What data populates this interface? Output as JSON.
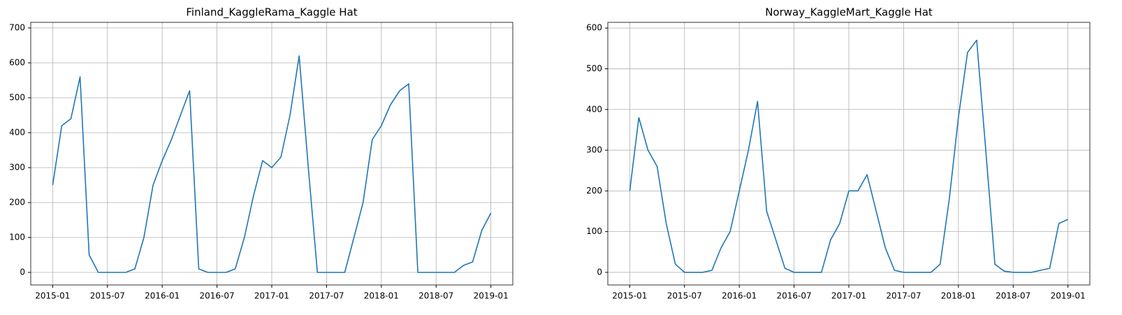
{
  "chart_data": [
    {
      "type": "line",
      "title": "Finland_KaggleRama_Kaggle Hat",
      "grid": true,
      "x": [
        "2015-01",
        "2015-02",
        "2015-03",
        "2015-04",
        "2015-05",
        "2015-06",
        "2015-07",
        "2015-08",
        "2015-09",
        "2015-10",
        "2015-11",
        "2015-12",
        "2016-01",
        "2016-02",
        "2016-03",
        "2016-04",
        "2016-05",
        "2016-06",
        "2016-07",
        "2016-08",
        "2016-09",
        "2016-10",
        "2016-11",
        "2016-12",
        "2017-01",
        "2017-02",
        "2017-03",
        "2017-04",
        "2017-05",
        "2017-06",
        "2017-07",
        "2017-08",
        "2017-09",
        "2017-10",
        "2017-11",
        "2017-12",
        "2018-01",
        "2018-02",
        "2018-03",
        "2018-04",
        "2018-05",
        "2018-06",
        "2018-07",
        "2018-08",
        "2018-09",
        "2018-10",
        "2018-11",
        "2018-12",
        "2019-01"
      ],
      "series": [
        {
          "color": "#1f77b4",
          "values": [
            250,
            420,
            440,
            560,
            50,
            0,
            0,
            0,
            0,
            10,
            100,
            250,
            320,
            380,
            450,
            520,
            10,
            0,
            0,
            0,
            10,
            100,
            220,
            320,
            300,
            330,
            450,
            620,
            300,
            0,
            0,
            0,
            0,
            100,
            200,
            380,
            420,
            480,
            520,
            540,
            0,
            0,
            0,
            0,
            0,
            20,
            30,
            120,
            170
          ]
        }
      ],
      "ylim": [
        -36,
        716
      ],
      "yticks": [
        0,
        100,
        200,
        300,
        400,
        500,
        600,
        700
      ],
      "xticks": [
        "2015-01",
        "2015-07",
        "2016-01",
        "2016-07",
        "2017-01",
        "2017-07",
        "2018-01",
        "2018-07",
        "2019-01"
      ]
    },
    {
      "type": "line",
      "title": "Norway_KaggleMart_Kaggle Hat",
      "grid": true,
      "x": [
        "2015-01",
        "2015-02",
        "2015-03",
        "2015-04",
        "2015-05",
        "2015-06",
        "2015-07",
        "2015-08",
        "2015-09",
        "2015-10",
        "2015-11",
        "2015-12",
        "2016-01",
        "2016-02",
        "2016-03",
        "2016-04",
        "2016-05",
        "2016-06",
        "2016-07",
        "2016-08",
        "2016-09",
        "2016-10",
        "2016-11",
        "2016-12",
        "2017-01",
        "2017-02",
        "2017-03",
        "2017-04",
        "2017-05",
        "2017-06",
        "2017-07",
        "2017-08",
        "2017-09",
        "2017-10",
        "2017-11",
        "2017-12",
        "2018-01",
        "2018-02",
        "2018-03",
        "2018-04",
        "2018-05",
        "2018-06",
        "2018-07",
        "2018-08",
        "2018-09",
        "2018-10",
        "2018-11",
        "2018-12",
        "2019-01"
      ],
      "series": [
        {
          "color": "#1f77b4",
          "values": [
            200,
            380,
            300,
            260,
            120,
            20,
            0,
            0,
            0,
            5,
            60,
            100,
            200,
            300,
            420,
            150,
            80,
            10,
            0,
            0,
            0,
            0,
            80,
            120,
            200,
            200,
            240,
            150,
            60,
            5,
            0,
            0,
            0,
            0,
            20,
            180,
            380,
            540,
            570,
            300,
            20,
            3,
            0,
            0,
            0,
            5,
            10,
            120,
            130
          ]
        }
      ],
      "ylim": [
        -31,
        614
      ],
      "yticks": [
        0,
        100,
        200,
        300,
        400,
        500,
        600
      ],
      "xticks": [
        "2015-01",
        "2015-07",
        "2016-01",
        "2016-07",
        "2017-01",
        "2017-07",
        "2018-01",
        "2018-07",
        "2019-01"
      ]
    }
  ]
}
